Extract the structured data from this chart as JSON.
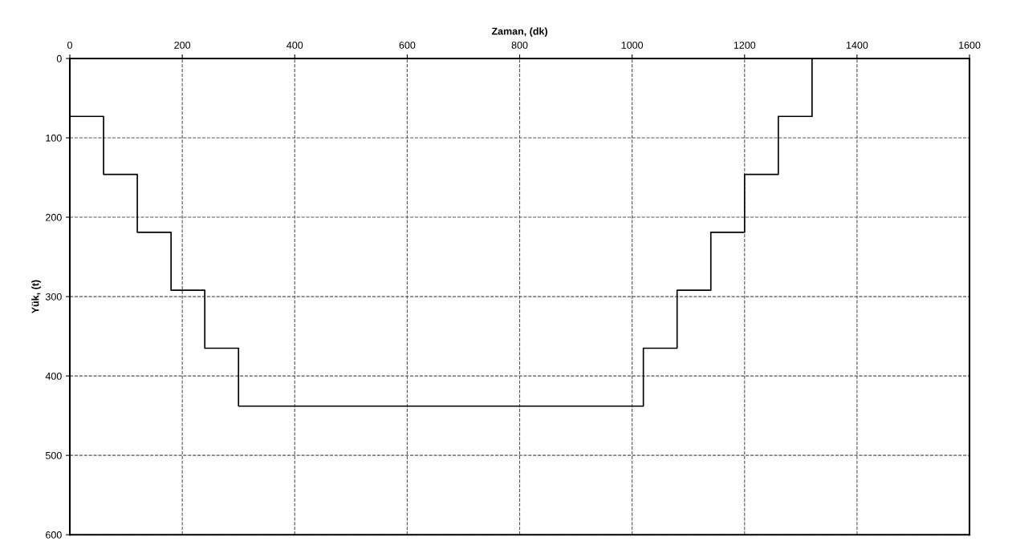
{
  "chart_data": {
    "type": "step",
    "xlabel": "Zaman, (dk)",
    "ylabel": "Yük, (t)",
    "x": [
      0,
      60,
      120,
      180,
      240,
      300,
      1020,
      1080,
      1140,
      1200,
      1260,
      1320,
      1400
    ],
    "series": [
      {
        "color": "#000000",
        "values": [
          73,
          146,
          219,
          292,
          365,
          438,
          365,
          292,
          219,
          146,
          73,
          0,
          0
        ]
      }
    ],
    "xlim": [
      0,
      1600
    ],
    "xticks": [
      0,
      200,
      400,
      600,
      800,
      1000,
      1200,
      1400,
      1600
    ],
    "ylim": [
      600,
      0
    ],
    "yticks": [
      0,
      100,
      200,
      300,
      400,
      500,
      600
    ],
    "grid": true,
    "line_style": "solid",
    "marker": "none"
  }
}
